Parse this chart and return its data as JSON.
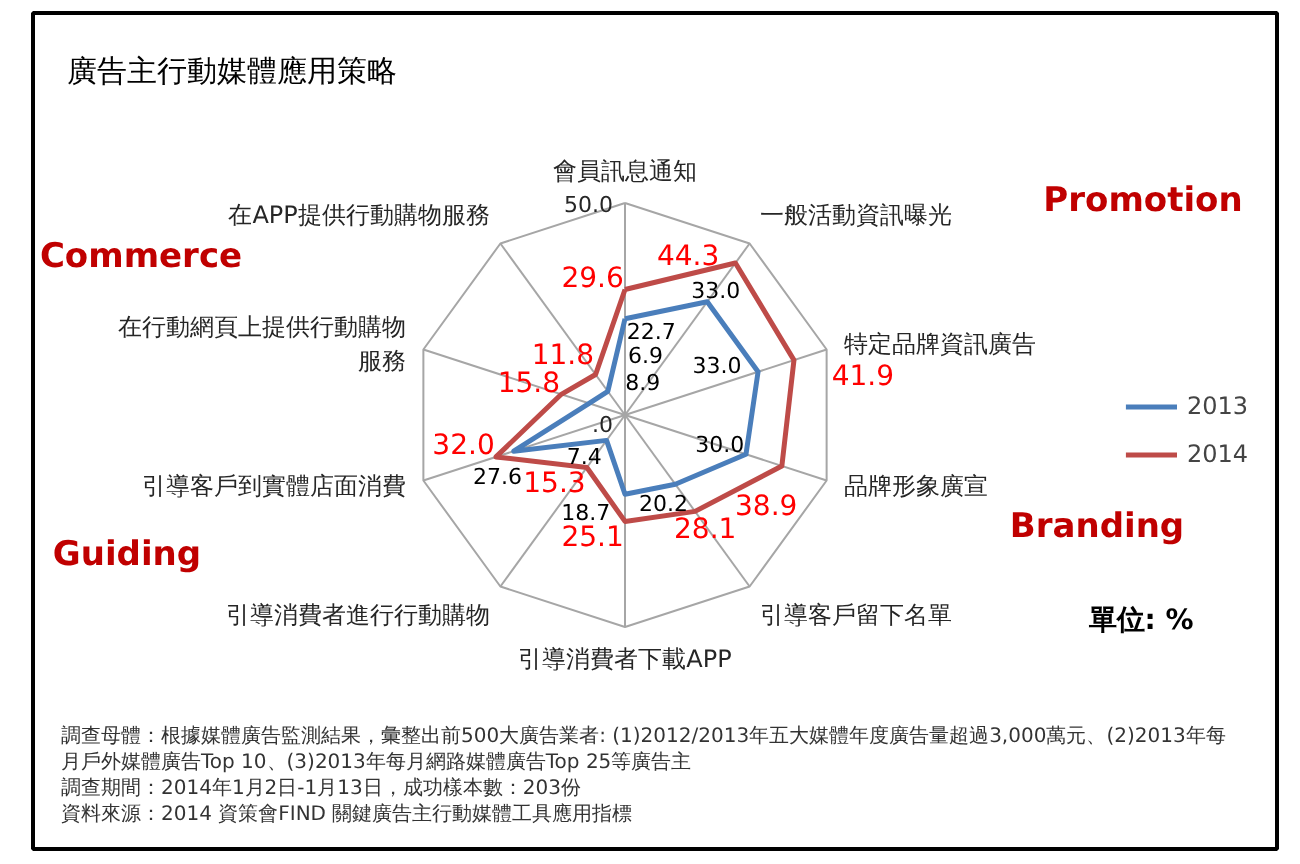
{
  "chart_data": {
    "type": "radar",
    "title": "廣告主行動媒體應用策略",
    "categories": [
      "會員訊息通知",
      "一般活動資訊曝光",
      "特定品牌資訊廣告",
      "品牌形象廣宣",
      "引導客戶留下名單",
      "引導消費者下載APP",
      "引導消費者進行行動購物",
      "引導客戶到實體店面消費",
      "在行動網頁上提供行動購物服務",
      "在APP提供行動購物服務"
    ],
    "series": [
      {
        "name": "2013",
        "color": "#4a7ebb",
        "values": [
          22.7,
          33.0,
          33.0,
          30.0,
          20.2,
          18.7,
          7.4,
          27.6,
          8.9,
          6.9
        ],
        "value_labels": [
          "22.7",
          "33.0",
          "33.0",
          "30.0",
          "20.2",
          "18.7",
          "7.4",
          "27.6",
          "8.9",
          "6.9"
        ]
      },
      {
        "name": "2014",
        "color": "#be4b48",
        "values": [
          29.6,
          44.3,
          41.9,
          38.9,
          28.1,
          25.1,
          15.3,
          32.0,
          15.8,
          11.8
        ],
        "value_labels": [
          "29.6",
          "44.3",
          "41.9",
          "38.9",
          "28.1",
          "25.1",
          "15.3",
          "32.0",
          "15.8",
          "11.8"
        ]
      }
    ],
    "ylim": [
      0,
      50
    ],
    "yticks": [
      {
        "value": 0,
        "label": ".0"
      },
      {
        "value": 50,
        "label": "50.0"
      }
    ],
    "grid": true,
    "legend": "right",
    "annotations": [
      "Promotion",
      "Commerce",
      "Branding",
      "Guiding",
      "單位: %",
      "調查母體：根據媒體廣告監測結果，彙整出前500大廣告業者: (1)2012/2013年五大媒體年度廣告量超過3,000萬元、(2)2013年每月戶外媒體廣告Top 10、(3)2013年每月網路媒體廣告Top 25等廣告主",
      "調查期間：2014年1月2日-1月13日，成功樣本數：203份",
      "資料來源：2014 資策會FIND 關鍵廣告主行動媒體工具應用指標"
    ]
  }
}
